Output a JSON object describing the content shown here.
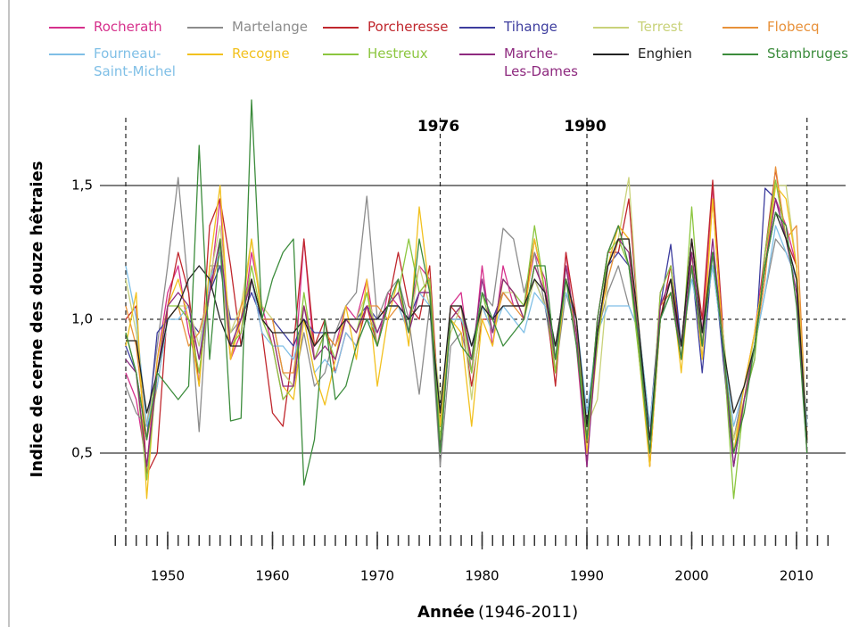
{
  "chart_data": {
    "type": "line",
    "ylabel": "Indice de cerne des douze hêtraies",
    "xlabel": "Année",
    "xlabel_note": "(1946-2011)",
    "xlim": [
      1945,
      2014
    ],
    "ylim": [
      0.18,
      1.85
    ],
    "xticks": [
      1950,
      1960,
      1970,
      1980,
      1990,
      2000,
      2010
    ],
    "yticks": [
      {
        "value": 0.5,
        "label": "0,5"
      },
      {
        "value": 1.0,
        "label": "1,0"
      },
      {
        "value": 1.5,
        "label": "1,5"
      }
    ],
    "reference_line": 1.0,
    "year_markers": [
      {
        "value": 1946
      },
      {
        "value": 1976,
        "label": "1976"
      },
      {
        "value": 1990,
        "label": "1990"
      },
      {
        "value": 2011
      }
    ],
    "x": [
      1946,
      1947,
      1948,
      1949,
      1950,
      1951,
      1952,
      1953,
      1954,
      1955,
      1956,
      1957,
      1958,
      1959,
      1960,
      1961,
      1962,
      1963,
      1964,
      1965,
      1966,
      1967,
      1968,
      1969,
      1970,
      1971,
      1972,
      1973,
      1974,
      1975,
      1976,
      1977,
      1978,
      1979,
      1980,
      1981,
      1982,
      1983,
      1984,
      1985,
      1986,
      1987,
      1988,
      1989,
      1990,
      1991,
      1992,
      1993,
      1994,
      1995,
      1996,
      1997,
      1998,
      1999,
      2000,
      2001,
      2002,
      2003,
      2004,
      2005,
      2006,
      2007,
      2008,
      2009,
      2010,
      2011
    ],
    "series": [
      {
        "name": "Rocherath",
        "color": "#d6318c",
        "values": [
          0.8,
          0.7,
          0.45,
          0.85,
          1.1,
          1.2,
          0.95,
          0.8,
          1.1,
          1.45,
          0.85,
          0.95,
          1.25,
          1.05,
          0.9,
          0.7,
          0.75,
          1.3,
          0.85,
          0.95,
          0.9,
          1.05,
          1.0,
          1.15,
          0.9,
          1.1,
          1.05,
          1.0,
          1.2,
          1.15,
          0.5,
          1.05,
          1.1,
          0.8,
          1.2,
          0.9,
          1.2,
          1.05,
          1.05,
          1.25,
          1.15,
          0.8,
          1.25,
          0.9,
          0.45,
          1.0,
          1.25,
          1.35,
          1.3,
          0.85,
          0.5,
          1.1,
          1.2,
          0.9,
          1.3,
          0.95,
          1.5,
          0.85,
          0.55,
          0.75,
          0.95,
          1.25,
          1.45,
          1.35,
          1.2,
          0.5
        ]
      },
      {
        "name": "Martelange",
        "color": "#8c8c8c",
        "values": [
          0.75,
          0.65,
          0.6,
          0.9,
          1.2,
          1.53,
          1.1,
          0.58,
          1.2,
          1.2,
          0.95,
          1.0,
          1.15,
          1.0,
          1.0,
          0.8,
          0.75,
          0.95,
          0.75,
          0.8,
          0.95,
          1.05,
          1.1,
          1.46,
          1.0,
          1.1,
          1.15,
          1.0,
          0.72,
          1.05,
          0.45,
          0.9,
          0.95,
          0.8,
          1.1,
          1.05,
          1.34,
          1.3,
          1.1,
          1.25,
          1.05,
          0.8,
          1.1,
          0.95,
          0.55,
          0.95,
          1.1,
          1.2,
          1.05,
          0.95,
          0.6,
          1.0,
          1.1,
          0.85,
          1.2,
          0.95,
          1.2,
          0.9,
          0.55,
          0.75,
          0.9,
          1.1,
          1.3,
          1.25,
          1.15,
          0.6
        ]
      },
      {
        "name": "Porcheresse",
        "color": "#c0272d",
        "values": [
          1.0,
          1.05,
          0.42,
          0.5,
          1.05,
          1.25,
          1.1,
          0.75,
          1.35,
          1.45,
          1.2,
          0.9,
          1.15,
          0.95,
          0.65,
          0.6,
          0.9,
          1.3,
          0.9,
          1.0,
          0.8,
          0.95,
          0.9,
          1.05,
          0.9,
          1.05,
          1.25,
          1.05,
          1.0,
          1.2,
          0.6,
          1.05,
          1.0,
          0.75,
          1.0,
          1.0,
          1.1,
          1.05,
          1.05,
          1.3,
          1.1,
          0.75,
          1.25,
          1.0,
          0.55,
          1.0,
          1.25,
          1.25,
          1.45,
          0.95,
          0.45,
          1.0,
          1.2,
          0.9,
          1.3,
          1.0,
          1.52,
          0.95,
          0.5,
          0.7,
          0.9,
          1.25,
          1.56,
          1.3,
          1.2,
          0.55
        ]
      },
      {
        "name": "Tihange",
        "color": "#3d3d9e",
        "values": [
          0.9,
          0.8,
          0.55,
          0.95,
          1.0,
          1.05,
          1.0,
          0.95,
          1.1,
          1.2,
          1.0,
          1.0,
          1.1,
          1.0,
          1.0,
          0.95,
          0.9,
          1.0,
          0.95,
          0.95,
          0.95,
          1.0,
          1.0,
          1.05,
          1.0,
          1.05,
          1.05,
          1.0,
          1.1,
          1.1,
          0.6,
          1.0,
          1.0,
          0.9,
          1.05,
          1.0,
          1.1,
          1.05,
          1.05,
          1.15,
          1.05,
          0.85,
          1.15,
          1.0,
          0.6,
          0.95,
          1.2,
          1.25,
          1.2,
          0.9,
          0.6,
          1.05,
          1.28,
          0.9,
          1.2,
          0.8,
          1.25,
          0.85,
          0.45,
          0.7,
          0.85,
          1.49,
          1.45,
          1.3,
          1.15,
          0.6
        ]
      },
      {
        "name": "Terrest",
        "color": "#c9d27a",
        "values": [
          1.15,
          0.95,
          0.6,
          0.8,
          1.0,
          1.05,
          1.05,
          0.9,
          1.15,
          1.35,
          0.95,
          1.05,
          1.3,
          1.05,
          1.0,
          0.8,
          0.75,
          1.05,
          0.9,
          0.95,
          0.9,
          1.0,
          1.0,
          1.1,
          0.95,
          1.05,
          1.1,
          0.95,
          1.2,
          1.05,
          0.7,
          0.95,
          1.05,
          0.7,
          1.05,
          0.95,
          1.1,
          1.1,
          1.0,
          1.15,
          1.05,
          0.9,
          1.15,
          1.0,
          0.6,
          0.7,
          1.15,
          1.3,
          1.53,
          0.95,
          0.6,
          1.0,
          1.1,
          0.85,
          1.2,
          0.9,
          1.25,
          0.95,
          0.55,
          0.7,
          0.95,
          1.2,
          1.5,
          1.5,
          1.2,
          0.6
        ]
      },
      {
        "name": "Flobecq",
        "color": "#e8913a",
        "values": [
          1.05,
          0.9,
          0.55,
          0.75,
          1.0,
          1.05,
          0.9,
          0.95,
          1.1,
          1.25,
          0.85,
          1.05,
          1.15,
          1.0,
          1.0,
          0.8,
          0.8,
          1.05,
          0.9,
          0.95,
          0.9,
          1.0,
          0.95,
          1.05,
          1.05,
          1.0,
          1.05,
          0.95,
          1.1,
          1.15,
          0.6,
          1.05,
          1.05,
          0.85,
          1.05,
          0.95,
          1.1,
          1.05,
          1.0,
          1.2,
          1.1,
          0.85,
          1.15,
          0.95,
          0.55,
          0.95,
          1.15,
          1.3,
          1.3,
          0.9,
          0.45,
          1.05,
          1.1,
          0.85,
          1.2,
          0.9,
          1.45,
          0.9,
          0.5,
          0.7,
          0.9,
          1.15,
          1.57,
          1.3,
          1.35,
          0.55
        ]
      },
      {
        "name": "Fourneau-\nSaint-Michel",
        "color": "#7fbfe6",
        "values": [
          1.2,
          1.0,
          0.6,
          0.75,
          1.0,
          1.0,
          1.05,
          0.85,
          1.15,
          1.25,
          0.9,
          1.0,
          1.15,
          0.95,
          0.9,
          0.9,
          0.85,
          1.0,
          0.8,
          0.85,
          0.8,
          0.95,
          0.9,
          1.0,
          0.95,
          1.05,
          1.05,
          0.95,
          1.1,
          1.05,
          0.65,
          1.0,
          1.0,
          0.9,
          1.05,
          0.95,
          1.05,
          1.0,
          0.95,
          1.1,
          1.05,
          0.9,
          1.1,
          1.0,
          0.65,
          0.95,
          1.05,
          1.05,
          1.05,
          0.95,
          0.6,
          1.0,
          1.1,
          0.9,
          1.15,
          0.95,
          1.2,
          0.9,
          0.6,
          0.75,
          0.9,
          1.1,
          1.35,
          1.25,
          1.15,
          0.6
        ]
      },
      {
        "name": "Recogne",
        "color": "#f2c11f",
        "values": [
          0.9,
          1.1,
          0.33,
          0.85,
          1.05,
          1.15,
          1.0,
          0.75,
          1.2,
          1.5,
          0.85,
          1.0,
          1.3,
          1.0,
          0.95,
          0.75,
          0.7,
          1.0,
          0.8,
          0.68,
          0.85,
          1.05,
          0.85,
          1.15,
          0.75,
          1.0,
          1.15,
          0.9,
          1.42,
          1.1,
          0.6,
          1.0,
          0.95,
          0.6,
          1.0,
          0.9,
          1.15,
          1.1,
          1.0,
          1.3,
          1.1,
          0.8,
          1.15,
          1.0,
          0.5,
          0.9,
          1.2,
          1.35,
          1.3,
          0.85,
          0.45,
          1.0,
          1.15,
          0.8,
          1.25,
          0.85,
          1.45,
          0.9,
          0.5,
          0.75,
          0.95,
          1.2,
          1.5,
          1.45,
          1.2,
          0.55
        ]
      },
      {
        "name": "Hestreux",
        "color": "#8cc63f",
        "values": [
          0.95,
          0.8,
          0.4,
          0.8,
          1.05,
          1.05,
          1.0,
          0.8,
          1.1,
          1.3,
          0.9,
          0.95,
          1.2,
          1.0,
          0.9,
          0.7,
          0.75,
          1.1,
          0.85,
          0.95,
          0.85,
          1.0,
          0.95,
          1.1,
          0.9,
          1.05,
          1.1,
          1.3,
          1.1,
          1.15,
          0.55,
          1.0,
          1.05,
          0.8,
          1.1,
          0.95,
          1.15,
          1.1,
          1.05,
          1.35,
          1.1,
          0.8,
          1.2,
          0.95,
          0.55,
          0.9,
          1.25,
          1.3,
          1.2,
          0.85,
          0.5,
          1.1,
          1.2,
          0.85,
          1.42,
          0.9,
          1.25,
          0.9,
          0.33,
          0.7,
          0.85,
          1.25,
          1.52,
          1.3,
          1.1,
          0.5
        ]
      },
      {
        "name": "Marche-\nLes-Dames",
        "color": "#8e2a7f",
        "values": [
          0.85,
          0.8,
          0.45,
          0.8,
          1.05,
          1.1,
          1.05,
          0.85,
          1.1,
          1.3,
          0.9,
          1.0,
          1.15,
          1.0,
          0.95,
          0.75,
          0.75,
          1.05,
          0.85,
          0.9,
          0.85,
          1.0,
          0.95,
          1.05,
          0.95,
          1.05,
          1.1,
          0.95,
          1.1,
          1.1,
          0.5,
          1.0,
          1.05,
          0.85,
          1.15,
          0.95,
          1.15,
          1.1,
          1.0,
          1.2,
          1.1,
          0.85,
          1.2,
          0.95,
          0.45,
          0.95,
          1.2,
          1.3,
          1.25,
          0.9,
          0.5,
          1.05,
          1.15,
          0.85,
          1.25,
          0.9,
          1.3,
          0.9,
          0.45,
          0.7,
          0.9,
          1.2,
          1.45,
          1.3,
          1.1,
          0.5
        ]
      },
      {
        "name": "Enghien",
        "color": "#222222",
        "values": [
          0.92,
          0.92,
          0.65,
          0.8,
          1.0,
          1.05,
          1.15,
          1.2,
          1.15,
          1.0,
          0.9,
          0.9,
          1.15,
          1.0,
          0.95,
          0.95,
          0.95,
          1.0,
          0.9,
          0.95,
          0.95,
          1.0,
          1.0,
          1.0,
          1.0,
          1.05,
          1.05,
          1.0,
          1.05,
          1.05,
          0.65,
          1.05,
          1.05,
          0.9,
          1.05,
          1.0,
          1.05,
          1.05,
          1.05,
          1.15,
          1.1,
          0.9,
          1.15,
          1.0,
          0.6,
          0.95,
          1.2,
          1.3,
          1.3,
          0.95,
          0.55,
          1.0,
          1.15,
          0.9,
          1.3,
          0.95,
          1.25,
          0.9,
          0.65,
          0.75,
          0.9,
          1.2,
          1.4,
          1.3,
          1.15,
          0.55
        ]
      },
      {
        "name": "Stambruges",
        "color": "#3c8c3c",
        "values": [
          0.95,
          0.8,
          0.55,
          0.8,
          0.75,
          0.7,
          0.75,
          1.65,
          0.85,
          1.3,
          0.62,
          0.63,
          1.82,
          1.0,
          1.15,
          1.25,
          1.3,
          0.38,
          0.55,
          1.0,
          0.7,
          0.75,
          0.9,
          1.0,
          0.9,
          1.05,
          1.15,
          0.95,
          1.3,
          1.1,
          0.5,
          1.0,
          0.9,
          0.85,
          1.1,
          1.0,
          0.9,
          0.95,
          1.0,
          1.2,
          1.2,
          0.85,
          1.15,
          0.9,
          0.55,
          1.0,
          1.25,
          1.35,
          1.2,
          0.9,
          0.5,
          1.0,
          1.1,
          0.85,
          1.2,
          0.9,
          1.25,
          0.9,
          0.5,
          0.65,
          0.9,
          1.2,
          1.4,
          1.35,
          1.05,
          0.5
        ]
      }
    ]
  }
}
